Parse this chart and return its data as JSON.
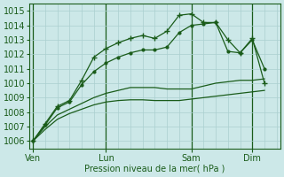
{
  "bg_color": "#cce8e8",
  "grid_color": "#aacfcf",
  "line_color_dark": "#1a5c1a",
  "line_color_mid": "#2a7a2a",
  "xlabel": "Pression niveau de la mer( hPa )",
  "xtick_labels": [
    "Ven",
    "Lun",
    "Sam",
    "Dim"
  ],
  "xtick_pos": [
    0,
    6,
    13,
    18
  ],
  "xlim": [
    -0.3,
    20.3
  ],
  "ylim": [
    1005.5,
    1015.5
  ],
  "yticks": [
    1006,
    1007,
    1008,
    1009,
    1010,
    1011,
    1012,
    1013,
    1014,
    1015
  ],
  "series1_x": [
    0,
    1,
    2,
    3,
    4,
    5,
    6,
    7,
    8,
    9,
    10,
    11,
    12,
    13,
    14,
    15,
    16,
    17,
    18,
    19
  ],
  "series1_y": [
    1006.0,
    1007.2,
    1008.4,
    1008.8,
    1010.2,
    1011.8,
    1012.4,
    1012.8,
    1013.1,
    1013.3,
    1013.1,
    1013.6,
    1014.7,
    1014.8,
    1014.2,
    1014.2,
    1013.0,
    1012.1,
    1013.1,
    1010.0
  ],
  "series2_x": [
    0,
    1,
    2,
    3,
    4,
    5,
    6,
    7,
    8,
    9,
    10,
    11,
    12,
    13,
    14,
    15,
    16,
    17,
    18,
    19
  ],
  "series2_y": [
    1006.0,
    1007.1,
    1008.3,
    1008.7,
    1009.9,
    1010.8,
    1011.4,
    1011.8,
    1012.1,
    1012.3,
    1012.3,
    1012.5,
    1013.5,
    1014.0,
    1014.1,
    1014.2,
    1012.2,
    1012.1,
    1013.0,
    1011.0
  ],
  "series3_x": [
    0,
    1,
    2,
    3,
    4,
    5,
    6,
    7,
    8,
    9,
    10,
    11,
    12,
    13,
    14,
    15,
    16,
    17,
    18,
    19
  ],
  "series3_y": [
    1006.0,
    1007.0,
    1007.8,
    1008.2,
    1008.6,
    1009.0,
    1009.3,
    1009.5,
    1009.7,
    1009.7,
    1009.7,
    1009.6,
    1009.6,
    1009.6,
    1009.8,
    1010.0,
    1010.1,
    1010.2,
    1010.2,
    1010.3
  ],
  "series4_x": [
    0,
    1,
    2,
    3,
    4,
    5,
    6,
    7,
    8,
    9,
    10,
    11,
    12,
    13,
    14,
    15,
    16,
    17,
    18,
    19
  ],
  "series4_y": [
    1006.0,
    1006.8,
    1007.5,
    1007.9,
    1008.2,
    1008.5,
    1008.7,
    1008.8,
    1008.85,
    1008.85,
    1008.8,
    1008.8,
    1008.8,
    1008.9,
    1009.0,
    1009.1,
    1009.2,
    1009.3,
    1009.4,
    1009.5
  ]
}
